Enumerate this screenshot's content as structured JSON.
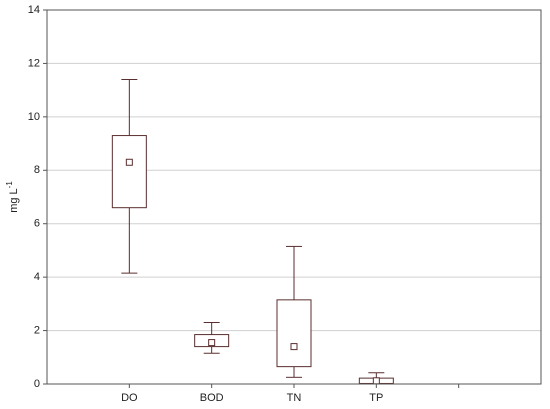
{
  "chart_data": {
    "type": "box",
    "ylabel": "mg L",
    "ylabel_exponent": "-1",
    "categories": [
      "DO",
      "BOD",
      "TN",
      "TP"
    ],
    "boxes": [
      {
        "min": 4.15,
        "q1": 6.6,
        "mid": 8.3,
        "q3": 9.3,
        "max": 11.4
      },
      {
        "min": 1.15,
        "q1": 1.4,
        "mid": 1.55,
        "q3": 1.85,
        "max": 2.3
      },
      {
        "min": 0.25,
        "q1": 0.65,
        "mid": 1.4,
        "q3": 3.15,
        "max": 5.15
      },
      {
        "min": 0.0,
        "q1": 0.02,
        "mid": 0.12,
        "q3": 0.22,
        "max": 0.42
      }
    ],
    "color": "#5a2e2e",
    "ylim": [
      0,
      14
    ],
    "yticks": [
      0,
      2,
      4,
      6,
      8,
      10,
      12,
      14
    ],
    "grid": true
  }
}
